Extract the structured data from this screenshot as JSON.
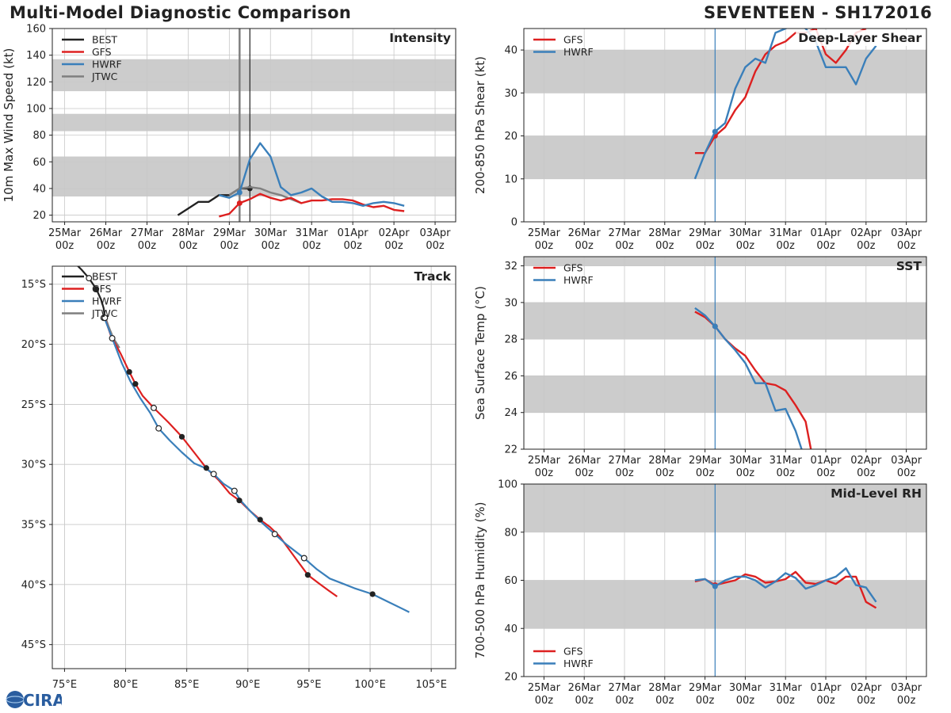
{
  "title_left": "Multi-Model Diagnostic Comparison",
  "title_right": "SEVENTEEN - SH172016",
  "logo_text": "CIRA",
  "colors": {
    "BEST": "#222222",
    "GFS": "#dd2020",
    "HWRF": "#3a7fba",
    "JTWC": "#7f7f7f",
    "band": "#cccccc",
    "grid": "#c8c8c8"
  },
  "chart_data": [
    {
      "id": "intensity",
      "type": "line",
      "title": "Intensity",
      "ylabel": "10m Max Wind Speed (kt)",
      "xlabels": [
        "25Mar\n00z",
        "26Mar\n00z",
        "27Mar\n00z",
        "28Mar\n00z",
        "29Mar\n00z",
        "30Mar\n00z",
        "31Mar\n00z",
        "01Apr\n00z",
        "02Apr\n00z",
        "03Apr\n00z"
      ],
      "xlim": [
        -0.3,
        9.5
      ],
      "ylim": [
        15,
        160
      ],
      "yticks": [
        20,
        40,
        60,
        80,
        100,
        120,
        140,
        160
      ],
      "bands": [
        [
          34,
          64
        ],
        [
          83,
          96
        ],
        [
          113,
          137
        ]
      ],
      "vlines": [
        {
          "x": 4.25,
          "color": "#7f7f7f",
          "width": 2.5
        },
        {
          "x": 4.5,
          "color": "#222222",
          "width": 1.2
        }
      ],
      "legend": [
        "BEST",
        "GFS",
        "HWRF",
        "JTWC"
      ],
      "series": [
        {
          "name": "BEST",
          "x": [
            2.75,
            3.0,
            3.25,
            3.5,
            3.75,
            4.0,
            4.25,
            4.5
          ],
          "y": [
            20,
            25,
            30,
            30,
            35,
            35,
            40,
            40
          ],
          "marker_x": 4.5,
          "marker_y": 40
        },
        {
          "name": "JTWC",
          "x": [
            4.0,
            4.25,
            4.5,
            4.75,
            5.0,
            5.25,
            5.5,
            5.75
          ],
          "y": [
            35,
            40,
            41,
            40,
            37,
            35,
            32,
            29
          ]
        },
        {
          "name": "GFS",
          "x": [
            3.75,
            4.0,
            4.25,
            4.5,
            4.75,
            5.0,
            5.25,
            5.5,
            5.75,
            6.0,
            6.25,
            6.5,
            6.75,
            7.0,
            7.25,
            7.5,
            7.75,
            8.0,
            8.25
          ],
          "y": [
            19,
            21,
            29,
            32,
            36,
            33,
            31,
            33,
            29,
            31,
            31,
            32,
            32,
            31,
            28,
            26,
            27,
            24,
            23
          ],
          "marker_x": 4.25,
          "marker_y": 29
        },
        {
          "name": "HWRF",
          "x": [
            3.75,
            4.0,
            4.25,
            4.5,
            4.75,
            5.0,
            5.25,
            5.5,
            5.75,
            6.0,
            6.25,
            6.5,
            6.75,
            7.0,
            7.25,
            7.5,
            7.75,
            8.0,
            8.25
          ],
          "y": [
            35,
            33,
            37,
            62,
            74,
            64,
            41,
            35,
            37,
            40,
            34,
            30,
            30,
            29,
            27,
            29,
            30,
            29,
            27
          ],
          "marker_x": 4.25,
          "marker_y": 37
        }
      ]
    },
    {
      "id": "shear",
      "type": "line",
      "title": "Deep-Layer Shear",
      "ylabel": "200-850 hPa Shear (kt)",
      "xlabels": [
        "25Mar\n00z",
        "26Mar\n00z",
        "27Mar\n00z",
        "28Mar\n00z",
        "29Mar\n00z",
        "30Mar\n00z",
        "31Mar\n00z",
        "01Apr\n00z",
        "02Apr\n00z",
        "03Apr\n00z"
      ],
      "xlim": [
        -0.5,
        9.5
      ],
      "ylim": [
        0,
        45
      ],
      "yticks": [
        0,
        10,
        20,
        30,
        40
      ],
      "bands": [
        [
          10,
          20
        ],
        [
          30,
          40
        ]
      ],
      "vlines": [
        {
          "x": 4.25,
          "color": "#3a7fba",
          "width": 1.2
        }
      ],
      "legend": [
        "GFS",
        "HWRF"
      ],
      "series": [
        {
          "name": "GFS",
          "x": [
            3.75,
            4.0,
            4.25,
            4.5,
            4.75,
            5.0,
            5.25,
            5.5,
            5.75,
            6.0,
            6.25,
            6.5,
            6.75,
            7.0,
            7.25,
            7.5,
            7.75,
            8.0
          ],
          "y": [
            16,
            16,
            20,
            22,
            26,
            29,
            35,
            39,
            41,
            42,
            44,
            44,
            45,
            39,
            37,
            40,
            44,
            45
          ],
          "marker_x": 4.25,
          "marker_y": 20
        },
        {
          "name": "HWRF",
          "x": [
            3.75,
            4.0,
            4.25,
            4.5,
            4.75,
            5.0,
            5.25,
            5.5,
            5.75,
            6.0,
            6.25,
            6.5,
            6.75,
            7.0,
            7.25,
            7.5,
            7.75,
            8.0,
            8.25
          ],
          "y": [
            10,
            16,
            21,
            23,
            31,
            36,
            38,
            37,
            44,
            45,
            46,
            45,
            42,
            36,
            36,
            36,
            32,
            38,
            41
          ],
          "marker_x": 4.25,
          "marker_y": 21
        }
      ]
    },
    {
      "id": "sst",
      "type": "line",
      "title": "SST",
      "ylabel": "Sea Surface Temp (°C)",
      "xlabels": [
        "25Mar\n00z",
        "26Mar\n00z",
        "27Mar\n00z",
        "28Mar\n00z",
        "29Mar\n00z",
        "30Mar\n00z",
        "31Mar\n00z",
        "01Apr\n00z",
        "02Apr\n00z",
        "03Apr\n00z"
      ],
      "xlim": [
        -0.5,
        9.5
      ],
      "ylim": [
        22,
        32.5
      ],
      "yticks": [
        22,
        24,
        26,
        28,
        30,
        32
      ],
      "bands": [
        [
          24,
          26
        ],
        [
          28,
          30
        ],
        [
          32,
          33
        ]
      ],
      "vlines": [
        {
          "x": 4.25,
          "color": "#3a7fba",
          "width": 1.2
        }
      ],
      "legend": [
        "GFS",
        "HWRF"
      ],
      "series": [
        {
          "name": "GFS",
          "x": [
            3.75,
            4.0,
            4.25,
            4.5,
            4.75,
            5.0,
            5.25,
            5.5,
            5.75,
            6.0,
            6.25,
            6.5,
            6.63
          ],
          "y": [
            29.5,
            29.2,
            28.7,
            28.0,
            27.5,
            27.1,
            26.3,
            25.6,
            25.5,
            25.2,
            24.4,
            23.5,
            22.0
          ],
          "marker_x": 4.25,
          "marker_y": 28.7
        },
        {
          "name": "HWRF",
          "x": [
            3.75,
            4.0,
            4.25,
            4.5,
            4.75,
            5.0,
            5.25,
            5.5,
            5.75,
            6.0,
            6.25,
            6.4
          ],
          "y": [
            29.7,
            29.3,
            28.7,
            28.0,
            27.4,
            26.7,
            25.6,
            25.6,
            24.1,
            24.2,
            23.0,
            22.0
          ],
          "marker_x": 4.25,
          "marker_y": 28.7
        }
      ]
    },
    {
      "id": "rh",
      "type": "line",
      "title": "Mid-Level RH",
      "ylabel": "700-500 hPa Humidity (%)",
      "xlabels": [
        "25Mar\n00z",
        "26Mar\n00z",
        "27Mar\n00z",
        "28Mar\n00z",
        "29Mar\n00z",
        "30Mar\n00z",
        "31Mar\n00z",
        "01Apr\n00z",
        "02Apr\n00z",
        "03Apr\n00z"
      ],
      "xlim": [
        -0.5,
        9.5
      ],
      "ylim": [
        20,
        100
      ],
      "yticks": [
        20,
        40,
        60,
        80,
        100
      ],
      "bands": [
        [
          40,
          60
        ],
        [
          80,
          100
        ]
      ],
      "vlines": [
        {
          "x": 4.25,
          "color": "#3a7fba",
          "width": 1.2
        }
      ],
      "legend": [
        "GFS",
        "HWRF"
      ],
      "legend_pos": "bottom-left",
      "series": [
        {
          "name": "GFS",
          "x": [
            3.75,
            4.0,
            4.25,
            4.5,
            4.75,
            5.0,
            5.25,
            5.5,
            5.75,
            6.0,
            6.25,
            6.5,
            6.75,
            7.0,
            7.25,
            7.5,
            7.75,
            8.0,
            8.25
          ],
          "y": [
            59.5,
            60.5,
            58,
            59,
            60,
            62.5,
            61.5,
            59,
            59.5,
            60.5,
            63.5,
            59,
            58.5,
            60,
            58.5,
            61.5,
            61.5,
            51,
            48.5
          ],
          "marker_x": 4.25,
          "marker_y": 58
        },
        {
          "name": "HWRF",
          "x": [
            3.75,
            4.0,
            4.25,
            4.5,
            4.75,
            5.0,
            5.25,
            5.5,
            5.75,
            6.0,
            6.25,
            6.5,
            6.75,
            7.0,
            7.25,
            7.5,
            7.75,
            8.0,
            8.25
          ],
          "y": [
            60,
            60.5,
            57.5,
            60,
            61.5,
            61.5,
            60,
            57,
            59.5,
            63,
            61,
            56.5,
            58,
            60,
            61.5,
            65,
            58,
            57,
            51
          ],
          "marker_x": 4.25,
          "marker_y": 57.5
        }
      ]
    },
    {
      "id": "track",
      "type": "scatter",
      "title": "Track",
      "xlim": [
        74,
        107
      ],
      "ylim": [
        -47,
        -13.5
      ],
      "xticks": [
        75,
        80,
        85,
        90,
        95,
        100,
        105
      ],
      "xticklabels": [
        "75°E",
        "80°E",
        "85°E",
        "90°E",
        "95°E",
        "100°E",
        "105°E"
      ],
      "yticks": [
        -15,
        -20,
        -25,
        -30,
        -35,
        -40,
        -45
      ],
      "yticklabels": [
        "15°S",
        "20°S",
        "25°S",
        "30°S",
        "35°S",
        "40°S",
        "45°S"
      ],
      "legend": [
        "BEST",
        "GFS",
        "HWRF",
        "JTWC"
      ],
      "series": [
        {
          "name": "BEST",
          "lon": [
            75.6,
            76.4,
            77.0,
            77.6,
            78.0,
            78.2,
            78.3
          ],
          "lat": [
            -13.0,
            -13.8,
            -14.5,
            -15.4,
            -16.3,
            -17.0,
            -17.8
          ],
          "filled": [
            77.6,
            -15.4
          ],
          "open": [
            [
              77.0,
              -14.5
            ],
            [
              78.2,
              -17.8
            ]
          ]
        },
        {
          "name": "JTWC",
          "lon": [
            78.3,
            78.6,
            79.0,
            79.5
          ],
          "lat": [
            -17.6,
            -18.5,
            -19.5,
            -20.3
          ]
        },
        {
          "name": "GFS",
          "lon": [
            78.3,
            78.8,
            79.6,
            80.3,
            80.8,
            81.4,
            82.3,
            83.5,
            84.6,
            85.6,
            86.6,
            87.6,
            88.5,
            89.3,
            90.1,
            91.0,
            91.8,
            92.6,
            93.6,
            94.9,
            95.8,
            96.6,
            97.3
          ],
          "lat": [
            -17.8,
            -19.3,
            -20.8,
            -22.3,
            -23.3,
            -24.3,
            -25.3,
            -26.5,
            -27.7,
            -29.0,
            -30.3,
            -31.3,
            -32.4,
            -33.0,
            -33.8,
            -34.6,
            -35.2,
            -36.0,
            -37.4,
            -39.2,
            -39.9,
            -40.5,
            -41.0
          ],
          "filled": [
            [
              80.3,
              -22.3
            ],
            [
              80.8,
              -23.3
            ],
            [
              84.6,
              -27.7
            ],
            [
              86.6,
              -30.3
            ],
            [
              89.3,
              -33.0
            ],
            [
              91.0,
              -34.6
            ],
            [
              94.9,
              -39.2
            ]
          ],
          "open": [
            [
              78.3,
              -17.8
            ],
            [
              82.3,
              -25.3
            ]
          ]
        },
        {
          "name": "HWRF",
          "lon": [
            78.3,
            78.9,
            79.7,
            80.4,
            81.2,
            82.0,
            82.7,
            83.6,
            84.6,
            85.6,
            86.5,
            87.2,
            88.0,
            88.9,
            89.4,
            90.3,
            91.2,
            92.2,
            93.2,
            94.6,
            95.6,
            96.7,
            97.7,
            98.7,
            100.2,
            101.6,
            103.2
          ],
          "lat": [
            -17.9,
            -19.5,
            -21.6,
            -23.1,
            -24.5,
            -25.7,
            -27.0,
            -28.0,
            -29.0,
            -29.9,
            -30.3,
            -30.8,
            -31.6,
            -32.2,
            -33.0,
            -34.0,
            -34.9,
            -35.8,
            -36.7,
            -37.8,
            -38.7,
            -39.5,
            -39.9,
            -40.3,
            -40.8,
            -41.5,
            -42.3
          ],
          "filled": [
            [
              100.2,
              -40.8
            ]
          ],
          "open": [
            [
              78.9,
              -19.5
            ],
            [
              82.7,
              -27.0
            ],
            [
              87.2,
              -30.8
            ],
            [
              88.9,
              -32.2
            ],
            [
              92.2,
              -35.8
            ],
            [
              94.6,
              -37.8
            ]
          ]
        }
      ]
    }
  ]
}
